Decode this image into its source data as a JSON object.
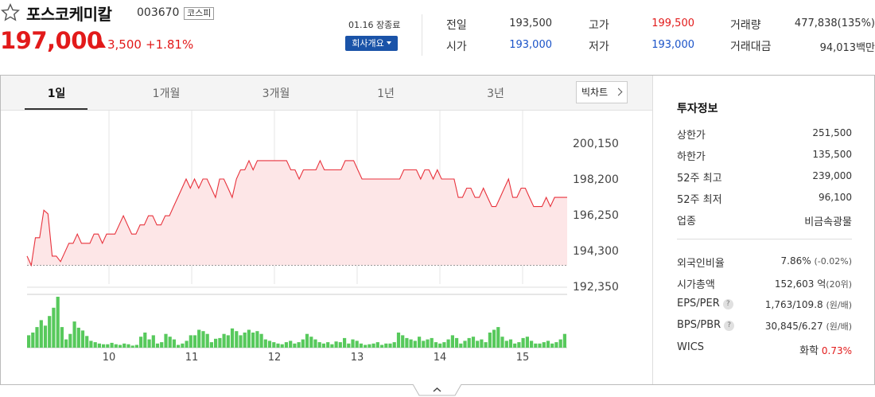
{
  "header": {
    "name": "포스코케미칼",
    "code": "003670",
    "market": "코스피",
    "price": "197,000",
    "change": "3,500",
    "change_pct": "+1.81%",
    "date_status": "01.16 장종료",
    "company_button": "회사개요",
    "stats": {
      "prev_label": "전일",
      "prev_value": "193,500",
      "open_label": "시가",
      "open_value": "193,000",
      "high_label": "고가",
      "high_value": "199,500",
      "low_label": "저가",
      "low_value": "193,000",
      "volume_label": "거래량",
      "volume_value": "477,838(135%)",
      "amount_label": "거래대금",
      "amount_value": "94,013백만"
    }
  },
  "tabs": [
    "1일",
    "1개월",
    "3개월",
    "1년",
    "3년"
  ],
  "big_chart_button": "빅차트",
  "colors": {
    "up": "#e21a1a",
    "down": "#1a53c8",
    "line": "#e8323c",
    "fill": "#fde6e7",
    "volume": "#57c95c"
  },
  "chart_data": {
    "type": "line",
    "y_ticks": [
      "200,150",
      "198,200",
      "196,250",
      "194,300",
      "192,350"
    ],
    "x_ticks": [
      "10",
      "11",
      "12",
      "13",
      "14",
      "15"
    ],
    "ylim": [
      192350,
      200150
    ],
    "reference_price": 193500,
    "prices": [
      194000,
      193500,
      195000,
      195000,
      196500,
      196300,
      194000,
      194000,
      193700,
      194200,
      194700,
      194700,
      195200,
      194700,
      194700,
      194700,
      195200,
      195200,
      194700,
      195200,
      195200,
      195200,
      195700,
      196200,
      195700,
      195200,
      195200,
      195700,
      195700,
      196200,
      196200,
      195700,
      195700,
      196200,
      196200,
      196700,
      197200,
      197700,
      198200,
      197700,
      198200,
      197700,
      198200,
      198200,
      197700,
      197200,
      198200,
      198200,
      197700,
      197200,
      198200,
      198700,
      198700,
      199200,
      198700,
      199200,
      199200,
      199200,
      199200,
      199200,
      199200,
      199200,
      199200,
      198700,
      198700,
      198200,
      198700,
      198700,
      198700,
      198700,
      199200,
      198700,
      198700,
      198700,
      198700,
      198700,
      199200,
      199200,
      199200,
      198700,
      198200,
      198200,
      198200,
      198200,
      198200,
      198200,
      198200,
      198200,
      198200,
      198200,
      198700,
      198700,
      198700,
      198700,
      198200,
      198700,
      198700,
      198200,
      198700,
      198200,
      198200,
      198200,
      198200,
      197200,
      197200,
      197700,
      197700,
      197200,
      197200,
      197700,
      197200,
      196700,
      196700,
      197200,
      197700,
      198200,
      197200,
      197200,
      197700,
      197700,
      197200,
      196700,
      196700,
      196700,
      197200,
      196700,
      197200,
      197200,
      197200,
      197200
    ],
    "volumes": [
      18,
      22,
      30,
      40,
      32,
      46,
      58,
      74,
      30,
      12,
      20,
      38,
      29,
      25,
      17,
      10,
      8,
      6,
      5,
      5,
      7,
      5,
      4,
      6,
      5,
      3,
      4,
      16,
      22,
      12,
      18,
      6,
      8,
      20,
      16,
      12,
      4,
      6,
      10,
      18,
      18,
      26,
      24,
      20,
      8,
      13,
      14,
      20,
      18,
      28,
      24,
      18,
      22,
      26,
      22,
      24,
      20,
      12,
      10,
      8,
      6,
      5,
      8,
      10,
      6,
      8,
      12,
      20,
      16,
      12,
      8,
      6,
      8,
      5,
      9,
      8,
      14,
      6,
      12,
      10,
      6,
      4,
      5,
      6,
      8,
      4,
      6,
      6,
      8,
      22,
      18,
      14,
      12,
      10,
      16,
      10,
      12,
      14,
      8,
      6,
      8,
      12,
      18,
      14,
      6,
      10,
      14,
      16,
      10,
      12,
      8,
      22,
      26,
      30,
      16,
      10,
      12,
      6,
      8,
      14,
      16,
      10,
      6,
      6,
      8,
      10,
      6,
      8,
      12,
      20
    ]
  },
  "panel": {
    "title": "투자정보",
    "rows1": [
      {
        "label": "상한가",
        "value": "251,500"
      },
      {
        "label": "하한가",
        "value": "135,500"
      },
      {
        "label": "52주 최고",
        "value": "239,000"
      },
      {
        "label": "52주 최저",
        "value": "96,100"
      },
      {
        "label": "업종",
        "value": "비금속광물"
      }
    ],
    "foreign_label": "외국인비율",
    "foreign_value": "7.86%",
    "foreign_change": "(-0.02%)",
    "mcap_label": "시가총액",
    "mcap_value": "152,603 억",
    "mcap_rank": "(20위)",
    "eps_label": "EPS/PER",
    "eps_value": "1,763/109.8",
    "eps_unit": "(원/배)",
    "bps_label": "BPS/PBR",
    "bps_value": "30,845/6.27",
    "bps_unit": "(원/배)",
    "wics_label": "WICS",
    "wics_value": "화학",
    "wics_change": "0.73%"
  }
}
